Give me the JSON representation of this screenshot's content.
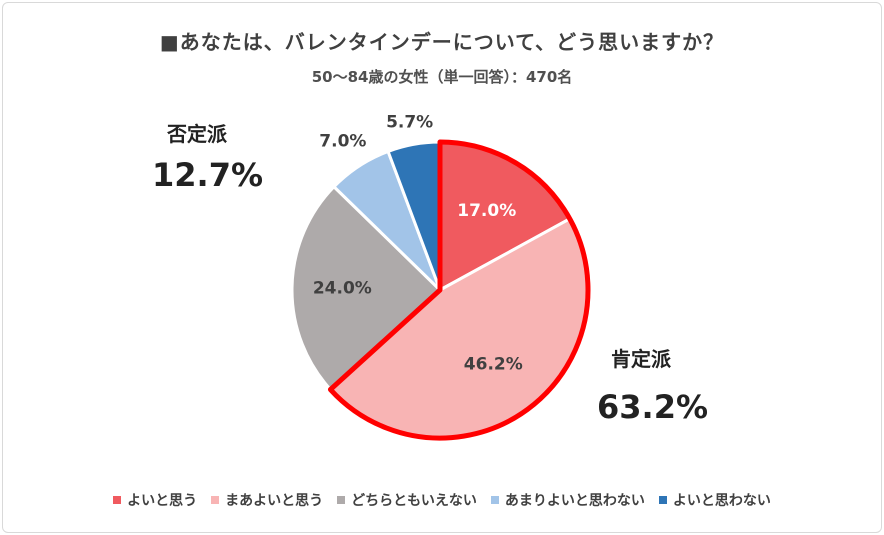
{
  "chart_data": {
    "type": "pie",
    "title": "■あなたは、バレンタインデーについて、どう思いますか？",
    "subtitle": "50～84歳の女性（単一回答）：470名",
    "slices": [
      {
        "label": "よいと思う",
        "value": 17.0,
        "display": "17.0%",
        "color": "#f05a5f"
      },
      {
        "label": "まあよいと思う",
        "value": 46.2,
        "display": "46.2%",
        "color": "#f8b4b4"
      },
      {
        "label": "どちらともいえない",
        "value": 24.0,
        "display": "24.0%",
        "color": "#aeaaaa"
      },
      {
        "label": "あまりよいと思わない",
        "value": 7.0,
        "display": "7.0%",
        "color": "#a2c4e8"
      },
      {
        "label": "よいと思わない",
        "value": 5.7,
        "display": "5.7%",
        "color": "#2e75b6"
      }
    ],
    "groups": [
      {
        "name": "肯定派",
        "total": "63.2%",
        "highlight_color": "#ff0000"
      },
      {
        "name": "否定派",
        "total": "12.7%"
      }
    ],
    "legend_position": "bottom"
  }
}
